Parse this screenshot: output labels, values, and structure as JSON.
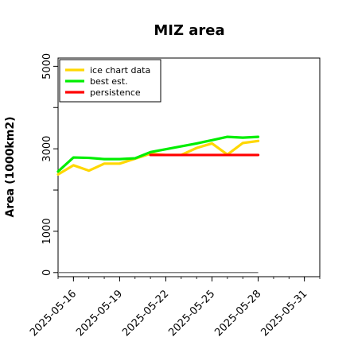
{
  "chart_data": {
    "type": "line",
    "title": "MIZ area",
    "xlabel": "",
    "ylabel": "Area (1000km2)",
    "x_ticks": [
      "2025-05-16",
      "2025-05-19",
      "2025-05-22",
      "2025-05-25",
      "2025-05-28",
      "2025-05-31"
    ],
    "y_ticks": [
      0,
      1000,
      3000,
      5000
    ],
    "xlim": [
      "2025-05-15",
      "2025-06-01"
    ],
    "ylim": [
      -100,
      5200
    ],
    "grid": false,
    "legend_position": "top-left",
    "series": [
      {
        "name": "ice chart data",
        "color": "#ffd700",
        "x": [
          "2025-05-15",
          "2025-05-16",
          "2025-05-17",
          "2025-05-18",
          "2025-05-19",
          "2025-05-20",
          "2025-05-21",
          "2025-05-22",
          "2025-05-23",
          "2025-05-24",
          "2025-05-25",
          "2025-05-26",
          "2025-05-27",
          "2025-05-28"
        ],
        "values": [
          2380,
          2600,
          2470,
          2640,
          2640,
          2760,
          2880,
          2850,
          2850,
          3020,
          3130,
          2860,
          3140,
          3190
        ]
      },
      {
        "name": "best est.",
        "color": "#00ee00",
        "x": [
          "2025-05-15",
          "2025-05-16",
          "2025-05-17",
          "2025-05-18",
          "2025-05-19",
          "2025-05-20",
          "2025-05-21",
          "2025-05-22",
          "2025-05-23",
          "2025-05-24",
          "2025-05-25",
          "2025-05-26",
          "2025-05-27",
          "2025-05-28"
        ],
        "values": [
          2450,
          2790,
          2780,
          2750,
          2750,
          2770,
          2920,
          2990,
          3060,
          3130,
          3210,
          3290,
          3270,
          3290
        ]
      },
      {
        "name": "persistence",
        "color": "#ff0000",
        "x": [
          "2025-05-21",
          "2025-05-28"
        ],
        "values": [
          2850,
          2850
        ]
      }
    ],
    "reference_line": {
      "color": "#808080",
      "x": [
        "2025-05-15",
        "2025-05-28"
      ],
      "values": [
        0,
        0
      ]
    }
  }
}
